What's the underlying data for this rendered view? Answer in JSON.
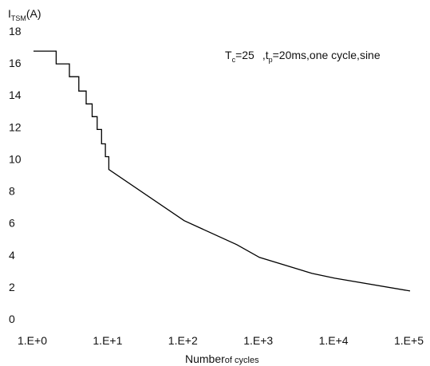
{
  "chart_data": {
    "type": "line",
    "x_scale": "log",
    "y_label": {
      "main": "I",
      "sub": "TSM",
      "unit": "(A)"
    },
    "x_label": {
      "main": "Number",
      "small": "of cycles"
    },
    "annotation": {
      "tc_main": "T",
      "tc_sub": "c",
      "tc_value": "=25",
      "tp_prefix": ",t",
      "tp_sub": "p",
      "tp_value": "=20ms,one cycle,sine"
    },
    "x_ticks": [
      {
        "value": 1,
        "label": "1.E+0"
      },
      {
        "value": 10,
        "label": "1.E+1"
      },
      {
        "value": 100,
        "label": "1.E+2"
      },
      {
        "value": 1000,
        "label": "1.E+3"
      },
      {
        "value": 10000,
        "label": "1.E+4"
      },
      {
        "value": 100000,
        "label": "1.E+5"
      }
    ],
    "y_ticks": [
      0,
      2,
      4,
      6,
      8,
      10,
      12,
      14,
      16,
      18
    ],
    "xlim": [
      1,
      100000
    ],
    "ylim": [
      0,
      18
    ],
    "grid": false,
    "legend": "none",
    "series": [
      {
        "color": "#000000",
        "points": [
          {
            "x": 1,
            "y": 16.4
          },
          {
            "x": 2,
            "y": 16.4
          },
          {
            "x": 2,
            "y": 15.6
          },
          {
            "x": 3,
            "y": 15.6
          },
          {
            "x": 3,
            "y": 14.8
          },
          {
            "x": 4,
            "y": 14.8
          },
          {
            "x": 4,
            "y": 13.9
          },
          {
            "x": 5,
            "y": 13.9
          },
          {
            "x": 5,
            "y": 13.1
          },
          {
            "x": 6,
            "y": 13.1
          },
          {
            "x": 6,
            "y": 12.3
          },
          {
            "x": 7,
            "y": 12.3
          },
          {
            "x": 7,
            "y": 11.5
          },
          {
            "x": 8,
            "y": 11.5
          },
          {
            "x": 8,
            "y": 10.6
          },
          {
            "x": 9,
            "y": 10.6
          },
          {
            "x": 9,
            "y": 9.8
          },
          {
            "x": 10,
            "y": 9.8
          },
          {
            "x": 10,
            "y": 9.0
          },
          {
            "x": 100,
            "y": 5.8
          },
          {
            "x": 500,
            "y": 4.3
          },
          {
            "x": 1000,
            "y": 3.5
          },
          {
            "x": 5000,
            "y": 2.5
          },
          {
            "x": 10000,
            "y": 2.2
          },
          {
            "x": 100000,
            "y": 1.4
          }
        ]
      }
    ]
  }
}
